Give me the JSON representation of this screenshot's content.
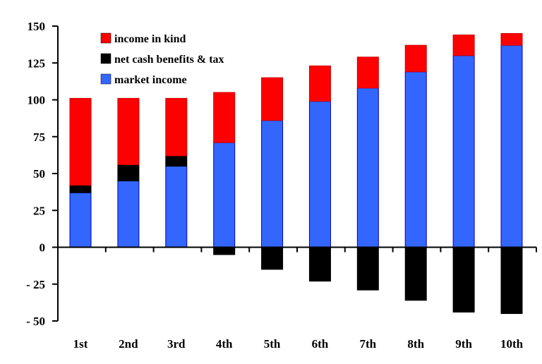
{
  "chart_data": {
    "type": "bar",
    "stacked": true,
    "categories": [
      "1st",
      "2nd",
      "3rd",
      "4th",
      "5th",
      "6th",
      "7th",
      "8th",
      "9th",
      "10th"
    ],
    "ylim": [
      -50,
      150
    ],
    "yticks": [
      150,
      125,
      100,
      75,
      50,
      25,
      0,
      -25,
      -50
    ],
    "ytick_labels": [
      "150",
      "125",
      "100",
      "75",
      "50",
      "25",
      "0",
      "- 25",
      "- 50"
    ],
    "series": [
      {
        "name": "market income",
        "color": "#3366ff",
        "edge_color": "#0000cc",
        "values": [
          37,
          45,
          55,
          71,
          86,
          99,
          108,
          119,
          130,
          137
        ]
      },
      {
        "name": "net cash benefits & tax",
        "color": "#000000",
        "edge_color": "#000000",
        "values": [
          5,
          11,
          7,
          -5,
          -15,
          -23,
          -29,
          -36,
          -44,
          -45
        ]
      },
      {
        "name": "income in kind",
        "color": "#ff0000",
        "edge_color": "#cc0000",
        "values": [
          59,
          45,
          39,
          34,
          29,
          24,
          21,
          18,
          14,
          8
        ]
      }
    ],
    "legend": {
      "placement": "top-left",
      "entries": [
        {
          "label": "income in kind",
          "color": "#ff0000"
        },
        {
          "label": "net cash benefits & tax",
          "color": "#000000"
        },
        {
          "label": "market income",
          "color": "#3366ff"
        }
      ]
    },
    "title": "",
    "xlabel": "",
    "ylabel": "",
    "grid": false
  }
}
